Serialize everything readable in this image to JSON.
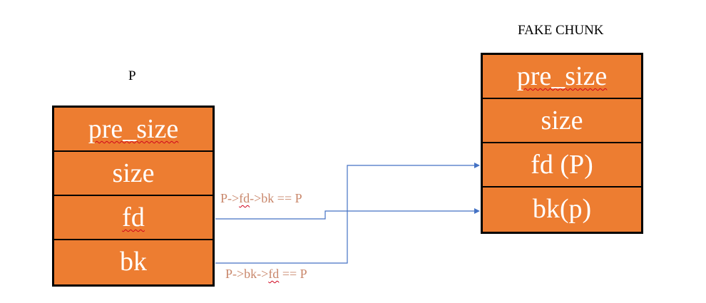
{
  "chunk_p": {
    "caption": "P",
    "fields": [
      "pre_size",
      "size",
      "fd",
      "bk"
    ]
  },
  "fake_chunk": {
    "caption": "FAKE CHUNK",
    "fields": [
      "pre_size",
      "size",
      "fd (P)",
      "bk(p)"
    ]
  },
  "conditions": {
    "fd_check": {
      "prefix": "P->",
      "underlined": "fd",
      "suffix": "->bk == P"
    },
    "bk_check": {
      "prefix": "P->bk->",
      "underlined": "fd",
      "suffix": " == P"
    }
  },
  "colors": {
    "chunk_fill": "#ed7d31",
    "arrow": "#4472c4",
    "condition_text": "#c9876b"
  }
}
